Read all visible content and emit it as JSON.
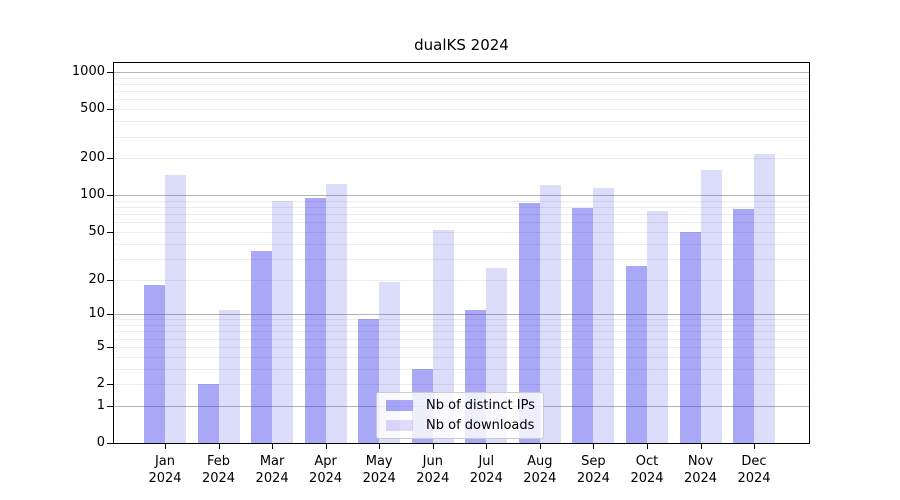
{
  "window": {
    "background": "#ffffff"
  },
  "chart_data": {
    "type": "bar",
    "title": "dualKS 2024",
    "categories": [
      "Jan",
      "Feb",
      "Mar",
      "Apr",
      "May",
      "Jun",
      "Jul",
      "Aug",
      "Sep",
      "Oct",
      "Nov",
      "Dec"
    ],
    "category_year": "2024",
    "series": [
      {
        "name": "Nb of distinct IPs",
        "color": "#3e3eeb",
        "alpha": 0.45,
        "values": [
          18,
          2,
          35,
          95,
          9,
          3,
          11,
          86,
          79,
          26,
          50,
          77
        ]
      },
      {
        "name": "Nb of downloads",
        "color": "#3e3eeb",
        "alpha": 0.18,
        "values": [
          145,
          11,
          90,
          124,
          19,
          52,
          25,
          122,
          114,
          74,
          160,
          216
        ]
      }
    ],
    "y_axis": {
      "scale": "log10(value+1)",
      "tick_values": [
        0,
        1,
        2,
        5,
        10,
        20,
        50,
        100,
        200,
        500,
        1000
      ],
      "tick_labels": [
        "0",
        "1",
        "2",
        "5",
        "10",
        "20",
        "50",
        "100",
        "200",
        "500",
        "1000"
      ],
      "major_grid_values": [
        1,
        10,
        100,
        1000
      ],
      "minor_grid_values": [
        2,
        3,
        4,
        5,
        6,
        7,
        8,
        9,
        20,
        30,
        40,
        50,
        60,
        70,
        80,
        90,
        200,
        300,
        400,
        500,
        600,
        700,
        800,
        900
      ],
      "ylim": [
        0,
        1230
      ]
    },
    "grid": true,
    "legend": {
      "position": "lower-center",
      "entries": [
        "Nb of distinct IPs",
        "Nb of downloads"
      ]
    },
    "colors": {
      "major_grid": "#b3b3b3",
      "minor_grid": "#ececec",
      "spine": "#000000",
      "text": "#000000",
      "bar_dark_composite": "#a7a7f6",
      "bar_light_composite": "#dcdcfb"
    }
  }
}
